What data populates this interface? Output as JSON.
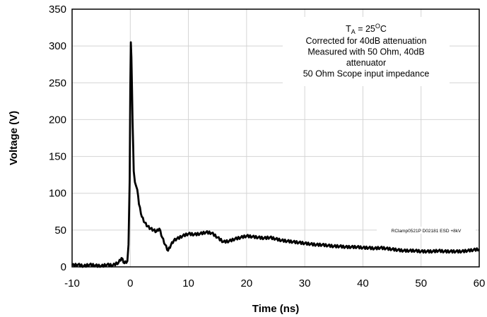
{
  "chart_data": {
    "type": "line",
    "xlabel": "Time (ns)",
    "ylabel": "Voltage (V)",
    "xlim": [
      -10,
      60
    ],
    "ylim": [
      0,
      350
    ],
    "xticks": [
      -10,
      0,
      10,
      20,
      30,
      40,
      50,
      60
    ],
    "yticks": [
      0,
      50,
      100,
      150,
      200,
      250,
      300,
      350
    ],
    "grid": true,
    "annotation": {
      "ta_prefix": "T",
      "ta_subscript": "A",
      "ta_middle": " = 25",
      "ta_superscript": "O",
      "ta_suffix": "C",
      "lines": [
        "Corrected for 40dB attenuation",
        "Measured with 50 Ohm, 40dB",
        "attenuator",
        "50 Ohm Scope input impedance"
      ]
    },
    "series_label": "RClamp0521P D02181 ESD +8kV",
    "series": [
      {
        "x": [
          -10,
          -9,
          -8,
          -7,
          -6,
          -5,
          -4,
          -3,
          -2,
          -1.5,
          -1,
          -0.5,
          -0.3,
          -0.1,
          0,
          0.1,
          0.2,
          0.3,
          0.4,
          0.5,
          0.6,
          0.8,
          1.0,
          1.2,
          1.5,
          2.0,
          2.5,
          3.0,
          3.5,
          4.0,
          4.5,
          5.0,
          5.5,
          6.0,
          6.5,
          7.0,
          7.5,
          8.0,
          9.0,
          10,
          11,
          12,
          13,
          14,
          15,
          16,
          17,
          18,
          19,
          20,
          21,
          22,
          23,
          24,
          25,
          26,
          27,
          28,
          29,
          30,
          31,
          32,
          33,
          34,
          35,
          36,
          37,
          38,
          39,
          40,
          41,
          42,
          43,
          44,
          45,
          46,
          47,
          48,
          49,
          50,
          51,
          52,
          53,
          54,
          55,
          56,
          57,
          58,
          59,
          60
        ],
        "y": [
          2,
          3,
          1,
          3,
          2,
          1,
          3,
          2,
          6,
          12,
          5,
          8,
          30,
          120,
          240,
          305,
          285,
          240,
          195,
          165,
          130,
          115,
          110,
          105,
          85,
          68,
          60,
          55,
          52,
          50,
          48,
          52,
          40,
          30,
          22,
          30,
          36,
          38,
          42,
          45,
          44,
          45,
          47,
          46,
          40,
          34,
          35,
          38,
          40,
          42,
          41,
          40,
          39,
          40,
          38,
          36,
          35,
          34,
          33,
          32,
          31,
          30,
          30,
          29,
          28,
          28,
          27,
          27,
          27,
          26,
          26,
          25,
          26,
          25,
          24,
          23,
          22,
          22,
          22,
          21,
          21,
          21,
          22,
          21,
          21,
          21,
          21,
          22,
          23,
          24
        ]
      }
    ]
  }
}
